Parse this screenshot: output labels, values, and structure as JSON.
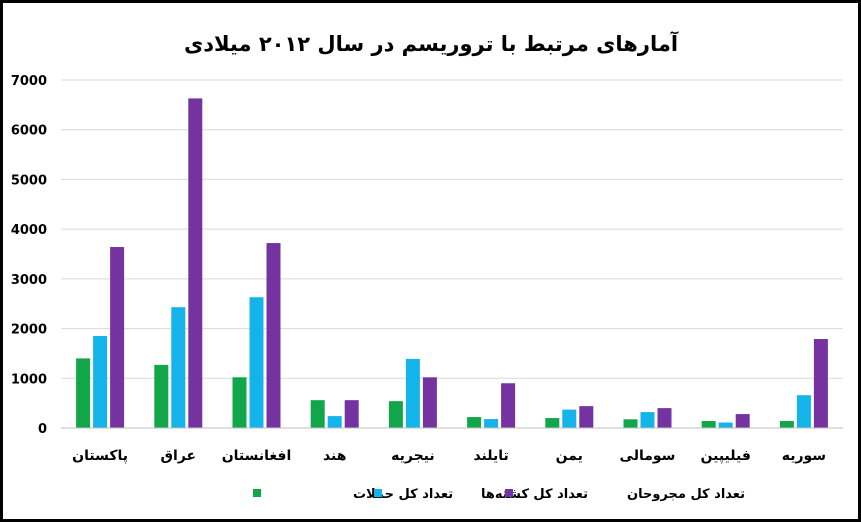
{
  "chart_data": {
    "type": "bar",
    "title": "آمارهای مرتبط با تروریسم در سال ۲۰۱۲ میلادی",
    "xlabel": "",
    "ylabel": "",
    "ylim": [
      0,
      7000
    ],
    "yticks": [
      0,
      1000,
      2000,
      3000,
      4000,
      5000,
      6000,
      7000
    ],
    "grid": true,
    "legend_position": "bottom",
    "categories": [
      "پاکستان",
      "عراق",
      "افغانستان",
      "هند",
      "نیجریه",
      "تایلند",
      "یمن",
      "سومالی",
      "فیلیپین",
      "سوریه"
    ],
    "series": [
      {
        "name": "تعداد کل حملات",
        "color": "#12a64a",
        "values": [
          1400,
          1270,
          1020,
          560,
          540,
          220,
          200,
          175,
          140,
          140
        ]
      },
      {
        "name": "تعداد کل کشته‌ها",
        "color": "#14b4ea",
        "values": [
          1850,
          2430,
          2630,
          240,
          1390,
          180,
          370,
          320,
          110,
          660
        ]
      },
      {
        "name": "تعداد کل مجروحان",
        "color": "#7433a1",
        "values": [
          3640,
          6630,
          3720,
          560,
          1020,
          900,
          440,
          400,
          280,
          1790
        ]
      }
    ]
  }
}
